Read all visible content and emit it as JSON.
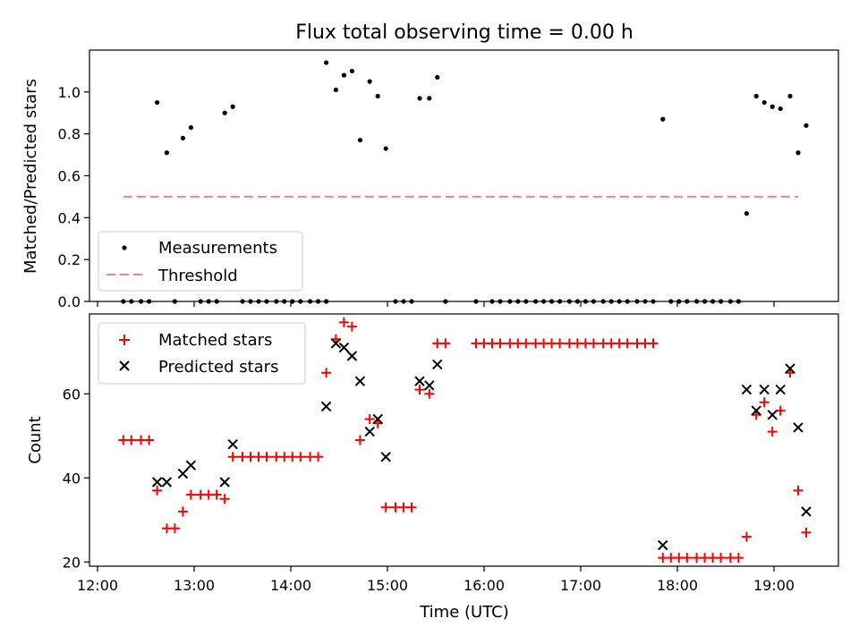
{
  "chart_data": [
    {
      "type": "scatter",
      "title": "Flux total observing time = 0.00 h",
      "ylabel": "Matched/Predicted stars",
      "xlabel": "",
      "xlim": [
        "11:55",
        "19:40"
      ],
      "ylim": [
        0,
        1.2
      ],
      "yticks": [
        0.0,
        0.2,
        0.4,
        0.6,
        0.8,
        1.0
      ],
      "legend": "lower-left",
      "series": [
        {
          "name": "Measurements",
          "marker": "dot",
          "color": "#000000",
          "points": [
            [
              "12:16",
              0
            ],
            [
              "12:21",
              0
            ],
            [
              "12:27",
              0
            ],
            [
              "12:32",
              0
            ],
            [
              "12:37",
              0.95
            ],
            [
              "12:43",
              0.71
            ],
            [
              "12:48",
              0
            ],
            [
              "12:53",
              0.78
            ],
            [
              "12:58",
              0.83
            ],
            [
              "13:04",
              0
            ],
            [
              "13:09",
              0
            ],
            [
              "13:14",
              0
            ],
            [
              "13:19",
              0.9
            ],
            [
              "13:24",
              0.93
            ],
            [
              "13:30",
              0
            ],
            [
              "13:35",
              0
            ],
            [
              "13:40",
              0
            ],
            [
              "13:45",
              0
            ],
            [
              "13:51",
              0
            ],
            [
              "13:56",
              0
            ],
            [
              "14:01",
              0
            ],
            [
              "14:06",
              0
            ],
            [
              "14:12",
              0
            ],
            [
              "14:17",
              0
            ],
            [
              "14:22",
              0
            ],
            [
              "14:22",
              1.14
            ],
            [
              "14:28",
              1.01
            ],
            [
              "14:33",
              1.08
            ],
            [
              "14:38",
              1.1
            ],
            [
              "14:43",
              0.77
            ],
            [
              "14:49",
              1.05
            ],
            [
              "14:54",
              0.98
            ],
            [
              "14:59",
              0.73
            ],
            [
              "15:05",
              0
            ],
            [
              "15:10",
              0
            ],
            [
              "15:15",
              0
            ],
            [
              "15:20",
              0.97
            ],
            [
              "15:26",
              0.97
            ],
            [
              "15:31",
              1.07
            ],
            [
              "15:36",
              0
            ],
            [
              "15:55",
              0
            ],
            [
              "16:05",
              0
            ],
            [
              "16:10",
              0
            ],
            [
              "16:16",
              0
            ],
            [
              "16:21",
              0
            ],
            [
              "16:26",
              0
            ],
            [
              "16:32",
              0
            ],
            [
              "16:37",
              0
            ],
            [
              "16:42",
              0
            ],
            [
              "16:47",
              0
            ],
            [
              "16:53",
              0
            ],
            [
              "16:58",
              0
            ],
            [
              "17:03",
              0
            ],
            [
              "17:08",
              0
            ],
            [
              "17:14",
              0
            ],
            [
              "17:19",
              0
            ],
            [
              "17:24",
              0
            ],
            [
              "17:29",
              0
            ],
            [
              "17:35",
              0
            ],
            [
              "17:40",
              0
            ],
            [
              "17:45",
              0
            ],
            [
              "17:51",
              0.87
            ],
            [
              "17:56",
              0
            ],
            [
              "18:01",
              0
            ],
            [
              "18:06",
              0
            ],
            [
              "18:12",
              0
            ],
            [
              "18:17",
              0
            ],
            [
              "18:22",
              0
            ],
            [
              "18:27",
              0
            ],
            [
              "18:33",
              0
            ],
            [
              "18:38",
              0
            ],
            [
              "18:43",
              0.42
            ],
            [
              "18:49",
              0.98
            ],
            [
              "18:54",
              0.95
            ],
            [
              "18:59",
              0.93
            ],
            [
              "19:04",
              0.92
            ],
            [
              "19:10",
              0.98
            ],
            [
              "19:15",
              0.71
            ],
            [
              "19:20",
              0.84
            ]
          ]
        },
        {
          "name": "Threshold",
          "style": "dashed",
          "color": "#ff7f7f",
          "x": [
            "12:16",
            "19:15"
          ],
          "y": [
            0.5,
            0.5
          ]
        }
      ]
    },
    {
      "type": "scatter",
      "title": "",
      "ylabel": "Count",
      "xlabel": "Time (UTC)",
      "xlim": [
        "11:55",
        "19:40"
      ],
      "ylim": [
        19,
        79
      ],
      "yticks": [
        20,
        40,
        60
      ],
      "xticks": [
        "12:00",
        "13:00",
        "14:00",
        "15:00",
        "16:00",
        "17:00",
        "18:00",
        "19:00"
      ],
      "legend": "top-left",
      "series": [
        {
          "name": "Matched stars",
          "marker": "plus",
          "color": "#ff0000",
          "points": [
            [
              "12:16",
              49
            ],
            [
              "12:21",
              49
            ],
            [
              "12:27",
              49
            ],
            [
              "12:32",
              49
            ],
            [
              "12:37",
              37
            ],
            [
              "12:43",
              28
            ],
            [
              "12:48",
              28
            ],
            [
              "12:53",
              32
            ],
            [
              "12:58",
              36
            ],
            [
              "13:04",
              36
            ],
            [
              "13:09",
              36
            ],
            [
              "13:14",
              36
            ],
            [
              "13:19",
              35
            ],
            [
              "13:24",
              45
            ],
            [
              "13:30",
              45
            ],
            [
              "13:35",
              45
            ],
            [
              "13:40",
              45
            ],
            [
              "13:45",
              45
            ],
            [
              "13:51",
              45
            ],
            [
              "13:56",
              45
            ],
            [
              "14:01",
              45
            ],
            [
              "14:06",
              45
            ],
            [
              "14:12",
              45
            ],
            [
              "14:17",
              45
            ],
            [
              "14:22",
              65
            ],
            [
              "14:28",
              73
            ],
            [
              "14:33",
              77
            ],
            [
              "14:38",
              76
            ],
            [
              "14:43",
              49
            ],
            [
              "14:49",
              54
            ],
            [
              "14:54",
              53
            ],
            [
              "14:59",
              33
            ],
            [
              "15:05",
              33
            ],
            [
              "15:10",
              33
            ],
            [
              "15:15",
              33
            ],
            [
              "15:20",
              61
            ],
            [
              "15:26",
              60
            ],
            [
              "15:31",
              72
            ],
            [
              "15:36",
              72
            ],
            [
              "15:55",
              72
            ],
            [
              "16:00",
              72
            ],
            [
              "16:05",
              72
            ],
            [
              "16:10",
              72
            ],
            [
              "16:16",
              72
            ],
            [
              "16:21",
              72
            ],
            [
              "16:26",
              72
            ],
            [
              "16:32",
              72
            ],
            [
              "16:37",
              72
            ],
            [
              "16:42",
              72
            ],
            [
              "16:47",
              72
            ],
            [
              "16:53",
              72
            ],
            [
              "16:58",
              72
            ],
            [
              "17:03",
              72
            ],
            [
              "17:08",
              72
            ],
            [
              "17:14",
              72
            ],
            [
              "17:19",
              72
            ],
            [
              "17:24",
              72
            ],
            [
              "17:29",
              72
            ],
            [
              "17:35",
              72
            ],
            [
              "17:40",
              72
            ],
            [
              "17:45",
              72
            ],
            [
              "17:51",
              21
            ],
            [
              "17:56",
              21
            ],
            [
              "18:01",
              21
            ],
            [
              "18:06",
              21
            ],
            [
              "18:12",
              21
            ],
            [
              "18:17",
              21
            ],
            [
              "18:22",
              21
            ],
            [
              "18:27",
              21
            ],
            [
              "18:33",
              21
            ],
            [
              "18:38",
              21
            ],
            [
              "18:43",
              26
            ],
            [
              "18:49",
              55
            ],
            [
              "18:54",
              58
            ],
            [
              "18:59",
              51
            ],
            [
              "19:04",
              56
            ],
            [
              "19:10",
              65
            ],
            [
              "19:15",
              37
            ],
            [
              "19:20",
              27
            ]
          ]
        },
        {
          "name": "Predicted stars",
          "marker": "x",
          "color": "#000000",
          "points": [
            [
              "12:37",
              39
            ],
            [
              "12:43",
              39
            ],
            [
              "12:53",
              41
            ],
            [
              "12:58",
              43
            ],
            [
              "13:19",
              39
            ],
            [
              "13:24",
              48
            ],
            [
              "14:22",
              57
            ],
            [
              "14:28",
              72
            ],
            [
              "14:33",
              71
            ],
            [
              "14:38",
              69
            ],
            [
              "14:43",
              63
            ],
            [
              "14:49",
              51
            ],
            [
              "14:54",
              54
            ],
            [
              "14:59",
              45
            ],
            [
              "15:20",
              63
            ],
            [
              "15:26",
              62
            ],
            [
              "15:31",
              67
            ],
            [
              "17:51",
              24
            ],
            [
              "18:43",
              61
            ],
            [
              "18:49",
              56
            ],
            [
              "18:54",
              61
            ],
            [
              "18:59",
              55
            ],
            [
              "19:04",
              61
            ],
            [
              "19:10",
              66
            ],
            [
              "19:15",
              52
            ],
            [
              "19:20",
              32
            ]
          ]
        }
      ]
    }
  ]
}
